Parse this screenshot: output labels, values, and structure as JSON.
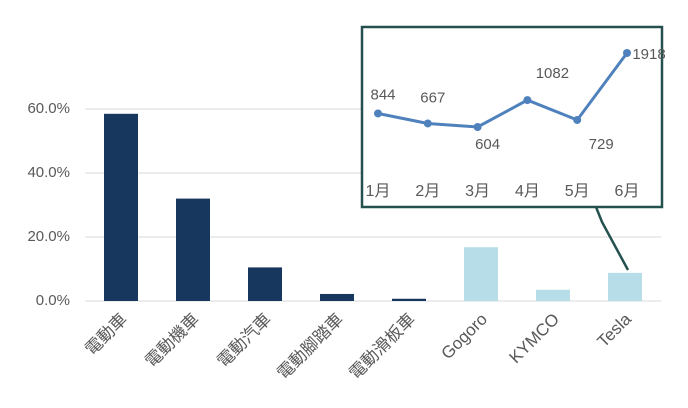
{
  "chart_data": [
    {
      "type": "bar",
      "categories": [
        "電動車",
        "電動機車",
        "電動汽車",
        "電動腳踏車",
        "電動滑板車",
        "Gogoro",
        "KYMCO",
        "Tesla"
      ],
      "values": [
        58.5,
        32,
        10.5,
        2.2,
        0.7,
        16.8,
        3.5,
        8.8
      ],
      "colors": [
        "#17375e",
        "#17375e",
        "#17375e",
        "#17375e",
        "#17375e",
        "#b7dde8",
        "#b7dde8",
        "#b7dde8"
      ],
      "ylim": [
        0,
        60
      ],
      "yticks": [
        {
          "value": 0,
          "label": "0.0%"
        },
        {
          "value": 20,
          "label": "20.0%"
        },
        {
          "value": 40,
          "label": "40.0%"
        },
        {
          "value": 60,
          "label": "60.0%"
        }
      ],
      "grid": true
    },
    {
      "type": "line",
      "categories": [
        "1月",
        "2月",
        "3月",
        "4月",
        "5月",
        "6月"
      ],
      "values": [
        844,
        667,
        604,
        1082,
        729,
        1918
      ],
      "color": "#4f81bd"
    }
  ]
}
